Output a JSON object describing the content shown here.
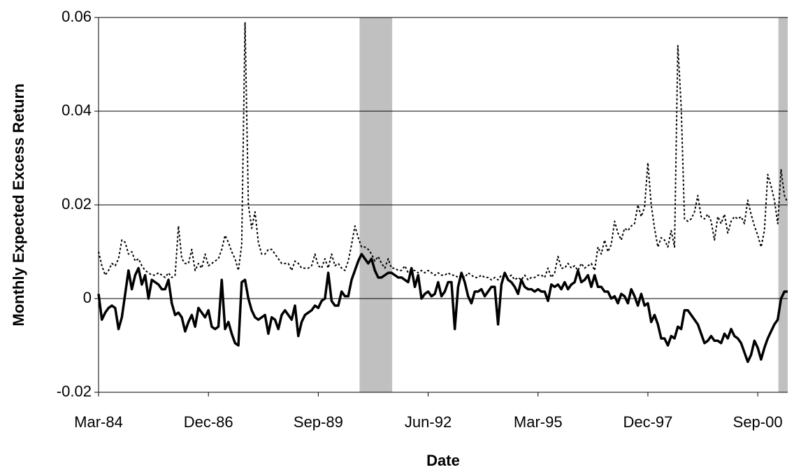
{
  "chart_data": {
    "type": "line",
    "x_label": "Date",
    "y_label": "Monthly Expected Excess Return",
    "categories": [
      "Mar-84",
      null,
      null,
      null,
      null,
      null,
      null,
      null,
      null,
      null,
      null,
      null,
      null,
      null,
      null,
      null,
      null,
      null,
      null,
      null,
      null,
      null,
      null,
      null,
      null,
      null,
      null,
      null,
      null,
      null,
      null,
      null,
      null,
      "Dec-86",
      null,
      null,
      null,
      null,
      null,
      null,
      null,
      null,
      null,
      null,
      null,
      null,
      null,
      null,
      null,
      null,
      null,
      null,
      null,
      null,
      null,
      null,
      null,
      null,
      null,
      null,
      null,
      null,
      null,
      null,
      null,
      null,
      "Sep-89",
      null,
      null,
      null,
      null,
      null,
      null,
      null,
      null,
      null,
      null,
      null,
      null,
      null,
      null,
      null,
      null,
      null,
      null,
      null,
      null,
      null,
      null,
      null,
      null,
      null,
      null,
      null,
      null,
      null,
      null,
      null,
      null,
      "Jun-92",
      null,
      null,
      null,
      null,
      null,
      null,
      null,
      null,
      null,
      null,
      null,
      null,
      null,
      null,
      null,
      null,
      null,
      null,
      null,
      null,
      null,
      null,
      null,
      null,
      null,
      null,
      null,
      null,
      null,
      null,
      null,
      null,
      "Mar-95",
      null,
      null,
      null,
      null,
      null,
      null,
      null,
      null,
      null,
      null,
      null,
      null,
      null,
      null,
      null,
      null,
      null,
      null,
      null,
      null,
      null,
      null,
      null,
      null,
      null,
      null,
      null,
      null,
      null,
      null,
      null,
      null,
      "Dec-97",
      null,
      null,
      null,
      null,
      null,
      null,
      null,
      null,
      null,
      null,
      null,
      null,
      null,
      null,
      null,
      null,
      null,
      null,
      null,
      null,
      null,
      null,
      null,
      null,
      null,
      null,
      null,
      null,
      null,
      null,
      null,
      null,
      "Sep-00",
      null,
      null,
      null,
      null,
      null,
      null,
      null,
      null,
      null
    ],
    "series": [
      {
        "color": "#000000",
        "style": "solid",
        "values": [
          0.001,
          -0.0045,
          -0.003,
          -0.002,
          -0.0015,
          -0.002,
          -0.0065,
          -0.004,
          0.001,
          0.006,
          0.002,
          0.005,
          0.0065,
          0.003,
          0.005,
          0.0,
          0.004,
          0.0035,
          0.003,
          0.002,
          0.002,
          0.004,
          -0.001,
          -0.0035,
          -0.003,
          -0.004,
          -0.007,
          -0.005,
          -0.0035,
          -0.006,
          -0.002,
          -0.003,
          -0.004,
          -0.0025,
          -0.006,
          -0.0065,
          -0.006,
          0.004,
          -0.0065,
          -0.005,
          -0.0075,
          -0.0095,
          -0.01,
          0.0035,
          0.004,
          0.0,
          -0.0025,
          -0.004,
          -0.0045,
          -0.004,
          -0.0035,
          -0.0075,
          -0.004,
          -0.0045,
          -0.0065,
          -0.0035,
          -0.0025,
          -0.0035,
          -0.0045,
          -0.0015,
          -0.008,
          -0.005,
          -0.0035,
          -0.003,
          -0.0025,
          -0.0015,
          -0.002,
          -0.0005,
          0.0,
          0.0055,
          -0.0005,
          -0.0015,
          -0.0015,
          0.0015,
          0.0005,
          0.0005,
          0.004,
          0.006,
          0.008,
          0.0095,
          0.0085,
          0.0075,
          0.0085,
          0.006,
          0.0045,
          0.0045,
          0.005,
          0.0055,
          0.0055,
          0.005,
          0.0045,
          0.0045,
          0.004,
          0.0035,
          0.0065,
          0.0025,
          0.005,
          0.0,
          0.001,
          0.0015,
          0.0005,
          0.001,
          0.0035,
          0.0005,
          0.0015,
          0.0035,
          0.0035,
          -0.0065,
          0.0025,
          0.0055,
          0.0035,
          0.0005,
          -0.001,
          0.0015,
          0.0015,
          0.002,
          0.0005,
          0.0015,
          0.0025,
          0.0025,
          -0.0055,
          0.003,
          0.0055,
          0.004,
          0.0035,
          0.0025,
          0.001,
          0.004,
          0.0025,
          0.002,
          0.002,
          0.0015,
          0.002,
          0.0015,
          0.0015,
          -0.0005,
          0.003,
          0.0025,
          0.003,
          0.002,
          0.0035,
          0.002,
          0.003,
          0.0035,
          0.006,
          0.0035,
          0.004,
          0.005,
          0.0025,
          0.005,
          0.0025,
          0.0025,
          0.0015,
          0.0015,
          0.0,
          0.0005,
          -0.001,
          0.001,
          0.0005,
          -0.001,
          0.002,
          0.0005,
          -0.0015,
          0.001,
          -0.0015,
          -0.001,
          -0.005,
          -0.0035,
          -0.0055,
          -0.0085,
          -0.0085,
          -0.01,
          -0.008,
          -0.0085,
          -0.006,
          -0.0065,
          -0.0025,
          -0.0025,
          -0.0035,
          -0.0045,
          -0.0055,
          -0.0075,
          -0.0095,
          -0.009,
          -0.008,
          -0.009,
          -0.009,
          -0.0095,
          -0.0075,
          -0.0085,
          -0.0065,
          -0.008,
          -0.0085,
          -0.0095,
          -0.0115,
          -0.0135,
          -0.012,
          -0.009,
          -0.0105,
          -0.013,
          -0.0105,
          -0.0085,
          -0.007,
          -0.0055,
          -0.0045,
          0.0,
          0.0015,
          0.0015
        ]
      },
      {
        "color": "#000000",
        "style": "dotted",
        "values": [
          0.01,
          0.007,
          0.005,
          0.006,
          0.0075,
          0.007,
          0.0085,
          0.0125,
          0.012,
          0.0095,
          0.01,
          0.008,
          0.0085,
          0.007,
          0.006,
          0.0055,
          0.005,
          0.005,
          0.0055,
          0.005,
          0.0045,
          0.0055,
          0.0045,
          0.005,
          0.0155,
          0.0085,
          0.0075,
          0.0075,
          0.0105,
          0.006,
          0.0075,
          0.0065,
          0.0095,
          0.007,
          0.0075,
          0.008,
          0.0085,
          0.0105,
          0.0135,
          0.012,
          0.01,
          0.0085,
          0.006,
          0.0115,
          0.059,
          0.02,
          0.015,
          0.0185,
          0.012,
          0.0095,
          0.0095,
          0.0105,
          0.0105,
          0.0095,
          0.0085,
          0.0075,
          0.0075,
          0.0075,
          0.006,
          0.008,
          0.0075,
          0.0065,
          0.0065,
          0.0065,
          0.007,
          0.0095,
          0.007,
          0.0065,
          0.0085,
          0.0065,
          0.0095,
          0.007,
          0.0075,
          0.0065,
          0.006,
          0.008,
          0.0115,
          0.0155,
          0.013,
          0.011,
          0.011,
          0.0105,
          0.0095,
          0.008,
          0.009,
          0.0075,
          0.0065,
          0.0085,
          0.0065,
          0.0065,
          0.006,
          0.006,
          0.007,
          0.0055,
          0.006,
          0.006,
          0.0055,
          0.006,
          0.0055,
          0.006,
          0.0055,
          0.005,
          0.0055,
          0.005,
          0.005,
          0.0055,
          0.005,
          0.005,
          0.0045,
          0.005,
          0.0045,
          0.0055,
          0.005,
          0.0045,
          0.0045,
          0.005,
          0.0045,
          0.0045,
          0.004,
          0.0045,
          0.004,
          0.005,
          0.0045,
          0.0045,
          0.005,
          0.004,
          0.0045,
          0.004,
          0.005,
          0.004,
          0.0045,
          0.0045,
          0.005,
          0.005,
          0.0045,
          0.0065,
          0.0045,
          0.0055,
          0.009,
          0.0065,
          0.0065,
          0.0075,
          0.0065,
          0.007,
          0.006,
          0.0075,
          0.0065,
          0.007,
          0.0075,
          0.006,
          0.011,
          0.0095,
          0.0125,
          0.01,
          0.0115,
          0.0165,
          0.014,
          0.0125,
          0.015,
          0.0145,
          0.0155,
          0.016,
          0.02,
          0.0175,
          0.0195,
          0.029,
          0.02,
          0.015,
          0.011,
          0.013,
          0.0125,
          0.011,
          0.0145,
          0.011,
          0.054,
          0.041,
          0.017,
          0.0165,
          0.017,
          0.0185,
          0.022,
          0.0175,
          0.017,
          0.018,
          0.0165,
          0.0125,
          0.0175,
          0.016,
          0.018,
          0.014,
          0.0165,
          0.0175,
          0.017,
          0.0175,
          0.016,
          0.021,
          0.018,
          0.0155,
          0.0135,
          0.011,
          0.0145,
          0.0265,
          0.024,
          0.021,
          0.016,
          0.0275,
          0.022,
          0.0205
        ]
      }
    ],
    "shaded_spans": [
      [
        78.4,
        88.2
      ],
      [
        204.2,
        207
      ]
    ],
    "shade_color": "#c0c0c0",
    "ylim": [
      -0.02,
      0.06
    ],
    "yticks": [
      -0.02,
      0,
      0.02,
      0.04,
      0.06
    ],
    "grid": true
  }
}
